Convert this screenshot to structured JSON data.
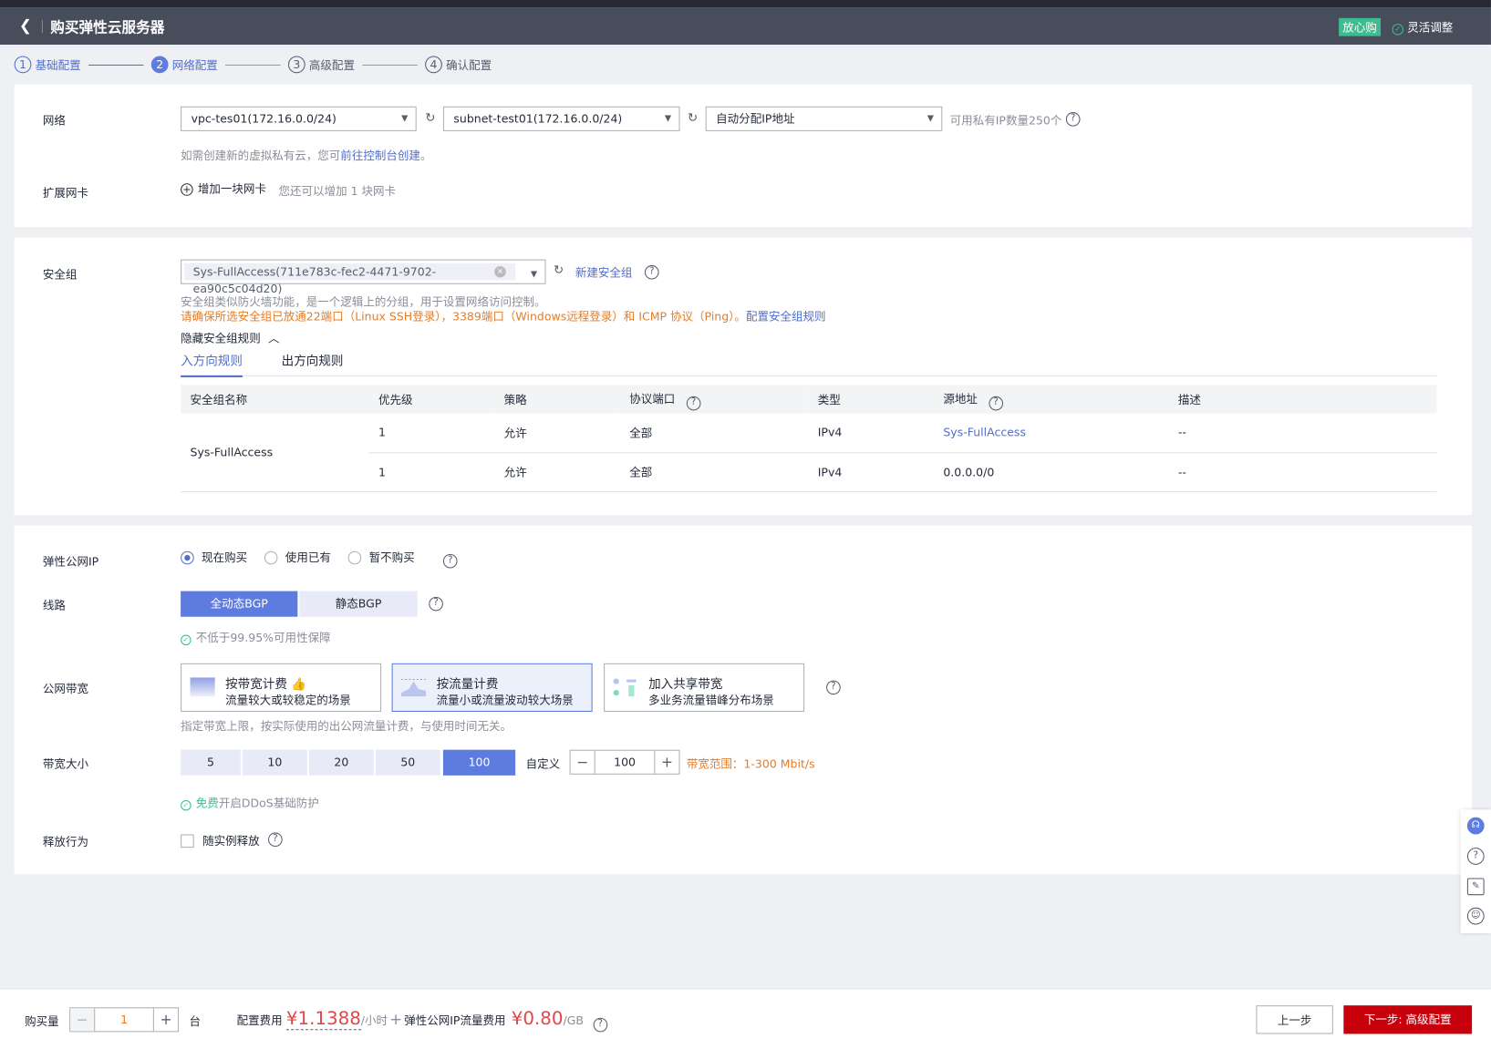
{
  "header": {
    "title": "购买弹性云服务器",
    "badge": "放心购",
    "flex_label": "灵活调整"
  },
  "steps": [
    {
      "n": "1",
      "label": "基础配置"
    },
    {
      "n": "2",
      "label": "网络配置"
    },
    {
      "n": "3",
      "label": "高级配置"
    },
    {
      "n": "4",
      "label": "确认配置"
    }
  ],
  "network": {
    "label": "网络",
    "vpc": "vpc-tes01(172.16.0.0/24)",
    "subnet": "subnet-test01(172.16.0.0/24)",
    "ip": "自动分配IP地址",
    "ip_avail": "可用私有IP数量250个",
    "hint_prefix": "如需创建新的虚拟私有云，您可",
    "hint_link": "前往控制台创建",
    "hint_suffix": "。",
    "nic_label": "扩展网卡",
    "add_nic": "增加一块网卡",
    "nic_hint": "您还可以增加 1 块网卡"
  },
  "security": {
    "label": "安全组",
    "selected": "Sys-FullAccess(711e783c-fec2-4471-9702-ea90c5c04d20)",
    "new_link": "新建安全组",
    "desc": "安全组类似防火墙功能，是一个逻辑上的分组，用于设置网络访问控制。",
    "warn": "请确保所选安全组已放通22端口（Linux SSH登录），3389端口（Windows远程登录）和 ICMP 协议（Ping）。",
    "config_link": "配置安全组规则",
    "hide_rules": "隐藏安全组规则",
    "tabs": [
      "入方向规则",
      "出方向规则"
    ],
    "columns": [
      "安全组名称",
      "优先级",
      "策略",
      "协议端口",
      "类型",
      "源地址",
      "描述"
    ],
    "group_name": "Sys-FullAccess",
    "rows": [
      {
        "priority": "1",
        "policy": "允许",
        "port": "全部",
        "type": "IPv4",
        "source": "Sys-FullAccess",
        "desc": "--"
      },
      {
        "priority": "1",
        "policy": "允许",
        "port": "全部",
        "type": "IPv4",
        "source": "0.0.0.0/0",
        "desc": "--"
      }
    ]
  },
  "eip": {
    "label": "弹性公网IP",
    "options": [
      "现在购买",
      "使用已有",
      "暂不购买"
    ],
    "selected": 0,
    "line_label": "线路",
    "lines": [
      "全动态BGP",
      "静态BGP"
    ],
    "line_note": "不低于99.95%可用性保障",
    "bw_label": "公网带宽",
    "billing": [
      {
        "title": "按带宽计费",
        "sub": "流量较大或较稳定的场景"
      },
      {
        "title": "按流量计费",
        "sub": "流量小或流量波动较大场景"
      },
      {
        "title": "加入共享带宽",
        "sub": "多业务流量错峰分布场景"
      }
    ],
    "billing_note": "指定带宽上限，按实际使用的出公网流量计费，与使用时间无关。",
    "size_label": "带宽大小",
    "sizes": [
      "5",
      "10",
      "20",
      "50",
      "100"
    ],
    "custom_label": "自定义",
    "custom_value": "100",
    "range": "带宽范围：1-300 Mbit/s",
    "ddos_free": "免费",
    "ddos": "开启DDoS基础防护",
    "release_label": "释放行为",
    "release_opt": "随实例释放"
  },
  "footer": {
    "qty_label": "购买量",
    "qty": "1",
    "unit": "台",
    "cfg_label": "配置费用",
    "cfg_price": "¥1.1388",
    "cfg_unit": "/小时",
    "plus": "+",
    "ip_label": "弹性公网IP流量费用",
    "ip_price": "¥0.80",
    "ip_unit": "/GB",
    "prev": "上一步",
    "next": "下一步: 高级配置"
  },
  "colors": {
    "primary": "#5e7ce0",
    "danger": "#c7000b",
    "price": "#e0474b",
    "warn": "#e37d29",
    "success": "#3bbd8f"
  }
}
